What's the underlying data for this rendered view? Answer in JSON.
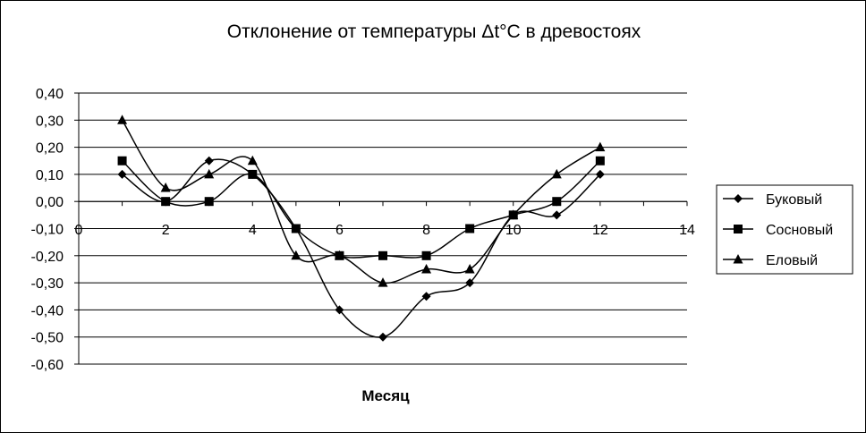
{
  "chart_data": {
    "type": "line",
    "title": "Отклонение от температуры Δt°C в древостоях",
    "xlabel": "Месяц",
    "ylabel": "",
    "xlim": [
      0,
      14
    ],
    "ylim": [
      -0.6,
      0.4
    ],
    "x_ticks": [
      "0",
      "2",
      "4",
      "6",
      "8",
      "10",
      "12",
      "14"
    ],
    "y_ticks": [
      "0,40",
      "0,30",
      "0,20",
      "0,10",
      "0,00",
      "-0,10",
      "-0,20",
      "-0,30",
      "-0,40",
      "-0,50",
      "-0,60"
    ],
    "grid": "horizontal",
    "legend_position": "right",
    "x": [
      1,
      2,
      3,
      4,
      5,
      6,
      7,
      8,
      9,
      10,
      11,
      12
    ],
    "series": [
      {
        "name": "Буковый",
        "marker": "diamond",
        "values": [
          0.1,
          0.0,
          0.15,
          0.1,
          -0.1,
          -0.4,
          -0.5,
          -0.35,
          -0.3,
          -0.05,
          -0.05,
          0.1
        ]
      },
      {
        "name": "Сосновый",
        "marker": "square",
        "values": [
          0.15,
          0.0,
          0.0,
          0.1,
          -0.1,
          -0.2,
          -0.2,
          -0.2,
          -0.1,
          -0.05,
          0.0,
          0.15
        ]
      },
      {
        "name": "Еловый",
        "marker": "triangle",
        "values": [
          0.3,
          0.05,
          0.1,
          0.15,
          -0.2,
          -0.2,
          -0.3,
          -0.25,
          -0.25,
          -0.05,
          0.1,
          0.2
        ]
      }
    ],
    "colors": {
      "line": "#000000",
      "grid": "#000000",
      "background": "#ffffff"
    }
  }
}
